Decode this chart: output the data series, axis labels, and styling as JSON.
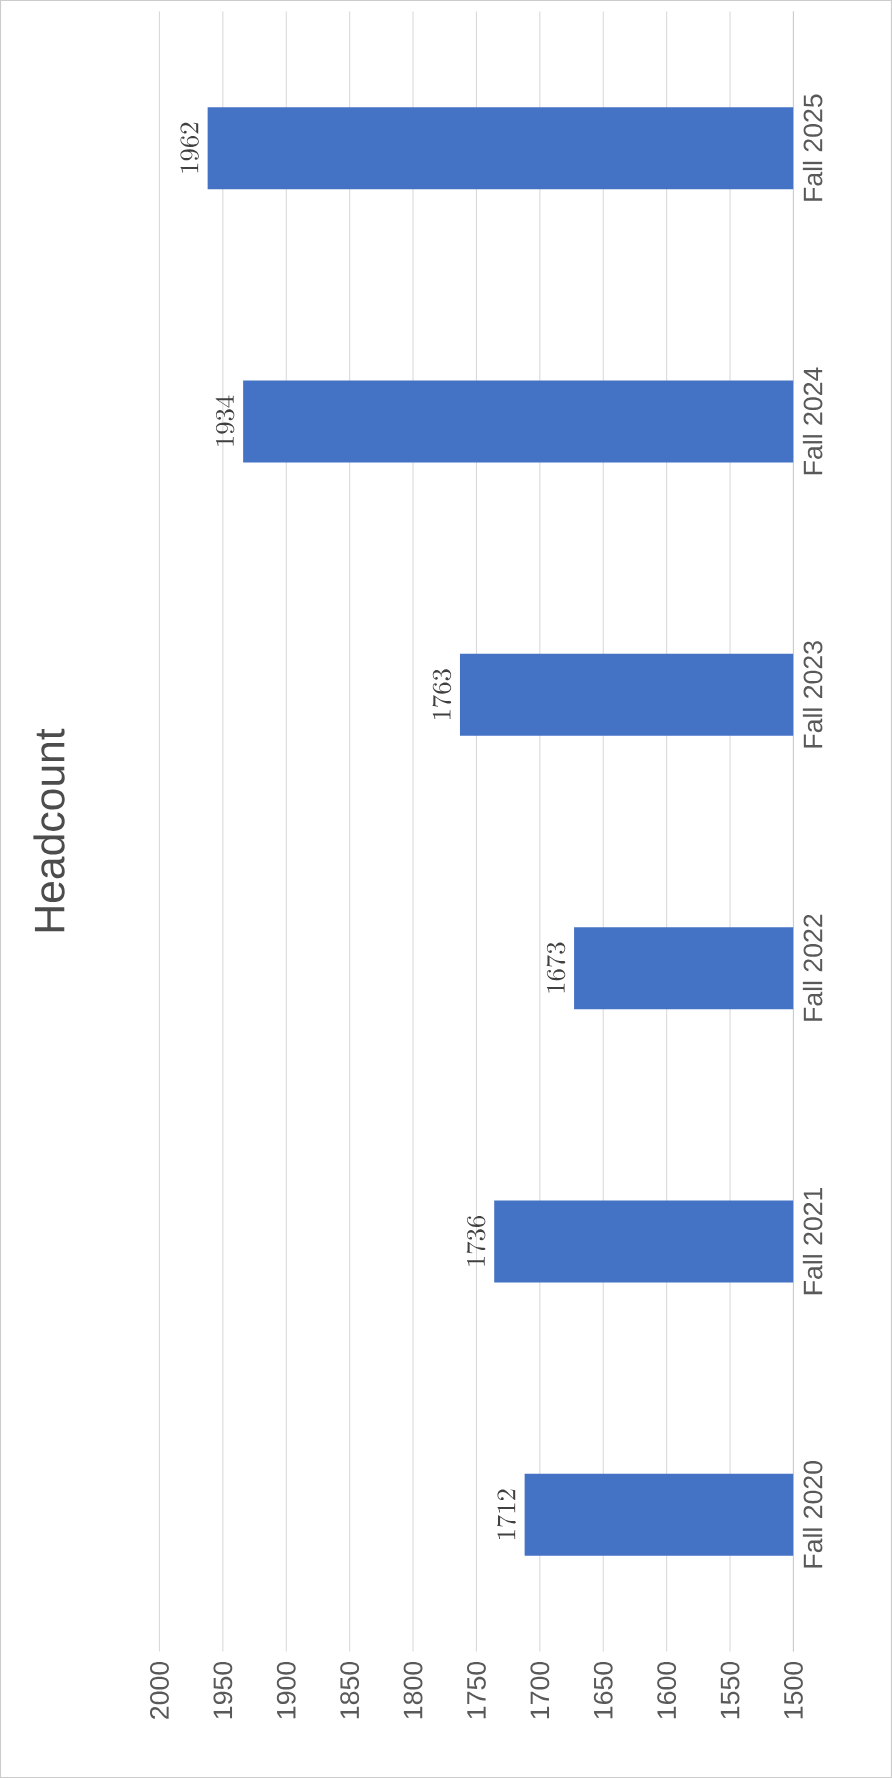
{
  "chart_data": {
    "type": "bar",
    "orientation": "horizontal",
    "title": "Headcount",
    "categories": [
      "Fall 2025",
      "Fall 2024",
      "Fall 2023",
      "Fall 2022",
      "Fall 2021",
      "Fall 2020"
    ],
    "values": [
      1962,
      1934,
      1763,
      1673,
      1736,
      1712
    ],
    "color": "#4472c4",
    "xlim": [
      2000,
      1500
    ],
    "xticks": [
      2000,
      1950,
      1900,
      1850,
      1800,
      1750,
      1700,
      1650,
      1600,
      1550,
      1500
    ],
    "grid": "x",
    "data_labels": true
  }
}
